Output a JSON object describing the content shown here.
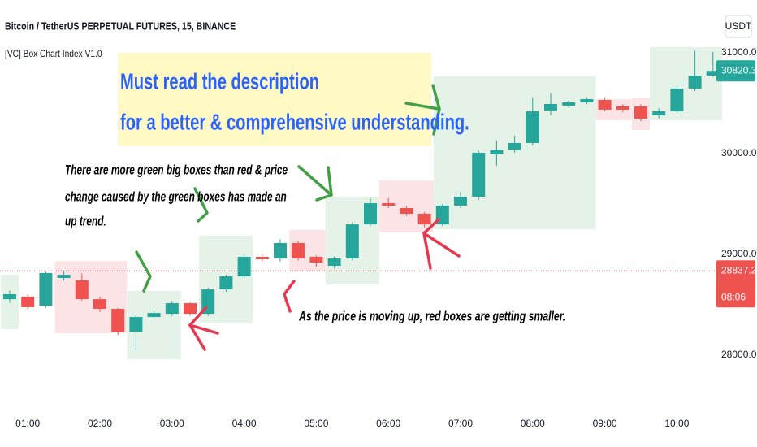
{
  "chart_data": {
    "type": "candlestick",
    "title": "Bitcoin / TetherUS PERPETUAL FUTURES, 15, BINANCE",
    "indicator": "[VC] Box Chart Index V1.0",
    "currency": "USDT",
    "up_color": "#26a69a",
    "down_color": "#ef5350",
    "categories": [
      null,
      "01:00",
      null,
      null,
      null,
      "02:00",
      null,
      null,
      null,
      "03:00",
      null,
      null,
      null,
      "04:00",
      null,
      null,
      null,
      "05:00",
      null,
      null,
      null,
      "06:00",
      null,
      null,
      null,
      "07:00",
      null,
      null,
      null,
      "08:00",
      null,
      null,
      null,
      "09:00",
      null,
      null,
      null,
      "10:00",
      null,
      null
    ],
    "open": [
      28556,
      28581,
      28492,
      28766,
      28742,
      28556,
      28460,
      28234,
      28379,
      28411,
      28516,
      28411,
      28653,
      28782,
      28976,
      28960,
      29113,
      28976,
      28887,
      28960,
      29298,
      29508,
      29460,
      29403,
      29298,
      29484,
      29573,
      29992,
      30040,
      30105,
      30428,
      30476,
      30508,
      30532,
      30468,
      30468,
      30379,
      30420,
      30645,
      30774
    ],
    "high": [
      28640,
      28600,
      28830,
      28840,
      28810,
      28580,
      28470,
      28400,
      28440,
      28540,
      28530,
      28670,
      28800,
      29000,
      29010,
      29150,
      29130,
      28990,
      28980,
      29320,
      29560,
      29560,
      29480,
      29420,
      29500,
      29620,
      30030,
      30130,
      30180,
      30560,
      30600,
      30530,
      30560,
      30560,
      30490,
      30490,
      30450,
      30680,
      31020,
      31010
    ],
    "low": [
      28520,
      28450,
      28470,
      28740,
      28540,
      28430,
      28200,
      28050,
      28360,
      28390,
      28390,
      28390,
      28630,
      28760,
      28930,
      28930,
      28940,
      28880,
      28860,
      28940,
      29280,
      29460,
      29380,
      29270,
      29280,
      29460,
      29540,
      29880,
      30010,
      30080,
      30380,
      30450,
      30490,
      30420,
      30410,
      30320,
      30350,
      30400,
      30620,
      30760
    ],
    "close": [
      28605,
      28476,
      28815,
      28798,
      28556,
      28460,
      28234,
      28379,
      28419,
      28516,
      28411,
      28653,
      28782,
      28976,
      28952,
      29113,
      28960,
      28919,
      28960,
      29298,
      29508,
      29484,
      29403,
      29298,
      29484,
      29573,
      30008,
      30040,
      30105,
      30420,
      30492,
      30508,
      30540,
      30436,
      30436,
      30347,
      30420,
      30645,
      30774,
      30820
    ],
    "boxes": [
      {
        "start": 0,
        "end": 0,
        "top": 28798,
        "bottom": 28258,
        "color": "#e4f2e7"
      },
      {
        "start": 3,
        "end": 6,
        "top": 28935,
        "bottom": 28218,
        "color": "#fce4e6"
      },
      {
        "start": 7,
        "end": 9,
        "top": 28637,
        "bottom": 27960,
        "color": "#e4f2e7"
      },
      {
        "start": 11,
        "end": 13,
        "top": 29186,
        "bottom": 28315,
        "color": "#e4f2e7"
      },
      {
        "start": 16,
        "end": 17,
        "top": 29242,
        "bottom": 28839,
        "color": "#fce4e6"
      },
      {
        "start": 18,
        "end": 20,
        "top": 29573,
        "bottom": 28702,
        "color": "#e4f2e7"
      },
      {
        "start": 21,
        "end": 23,
        "top": 29734,
        "bottom": 29218,
        "color": "#fce4e6"
      },
      {
        "start": 24,
        "end": 32,
        "top": 30766,
        "bottom": 29250,
        "color": "#e4f2e7"
      },
      {
        "start": 33,
        "end": 34,
        "top": 30540,
        "bottom": 30331,
        "color": "#fce4e6"
      },
      {
        "start": 35,
        "end": 35,
        "top": 30557,
        "bottom": 30234,
        "color": "#fce4e6"
      },
      {
        "start": 36,
        "end": 39,
        "top": 31057,
        "bottom": 30331,
        "color": "#e4f2e7"
      }
    ],
    "ylim": [
      27452,
      31524
    ],
    "yticks": [
      {
        "value": 28000,
        "label": "28000.0"
      },
      {
        "value": 29000,
        "label": "29000.0"
      },
      {
        "value": 30000,
        "label": "30000.0"
      },
      {
        "value": 31000,
        "label": "31000.0"
      }
    ],
    "grid": false,
    "price_labels": [
      {
        "value": 30820.3,
        "color": "#26a69a"
      },
      {
        "value": 28837.2,
        "color": "#ef5350",
        "countdown": "08:06",
        "line": true
      }
    ],
    "callout": [
      "Must read the description",
      "for a better & comprehensive understanding."
    ],
    "annotations": [
      "There are more green big boxes than red & price",
      "change caused by the green boxes has made an",
      " up trend.",
      "As the price is moving up, red boxes are getting smaller."
    ]
  }
}
